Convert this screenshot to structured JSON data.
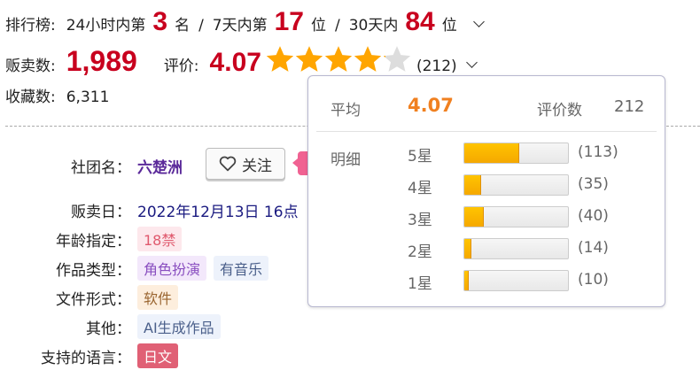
{
  "ranking": {
    "label": "排行榜:",
    "d1_pre": "24小时内第",
    "d1_val": "3",
    "d1_suf": "名",
    "sep": "/",
    "d7_pre": "7天内第",
    "d7_val": "17",
    "d7_suf": "位",
    "d30_pre": "30天内",
    "d30_val": "84",
    "d30_suf": "位",
    "expand_icon": "chevron-down-icon"
  },
  "sales": {
    "label": "贩卖数:",
    "value": "1,989"
  },
  "rating": {
    "label": "评价:",
    "value": "4.07",
    "stars": 4.07,
    "count_text": "(212)",
    "expand_icon": "chevron-down-icon"
  },
  "favorites": {
    "label": "收藏数:",
    "value": "6,311"
  },
  "info": {
    "circle_label": "社团名：",
    "circle_value": "六楚洲",
    "follow_label": "关注",
    "follow_icon": "heart-icon",
    "date_label": "贩卖日：",
    "date_value": "2022年12月13日 16点",
    "age_label": "年龄指定：",
    "age_tag": "18禁",
    "genre_label": "作品类型：",
    "genre_tags": [
      "角色扮演",
      "有音乐"
    ],
    "format_label": "文件形式：",
    "format_tag": "软件",
    "other_label": "其他：",
    "other_tag": "AI生成作品",
    "lang_label": "支持的语言：",
    "lang_tag": "日文"
  },
  "popup": {
    "avg_label": "平均",
    "avg_value": "4.07",
    "count_label": "评价数",
    "count_value": "212",
    "detail_label": "明细",
    "rows": [
      {
        "label": "5星",
        "count": 113,
        "text": "(113)"
      },
      {
        "label": "4星",
        "count": 35,
        "text": "(35)"
      },
      {
        "label": "3星",
        "count": 40,
        "text": "(40)"
      },
      {
        "label": "2星",
        "count": 14,
        "text": "(14)"
      },
      {
        "label": "1星",
        "count": 10,
        "text": "(10)"
      }
    ]
  },
  "colors": {
    "accent_red": "#c8001e",
    "star": "#ffa500",
    "avg_orange": "#f08020",
    "circle_purple": "#5b2a9a",
    "date_navy": "#1a1a80"
  }
}
